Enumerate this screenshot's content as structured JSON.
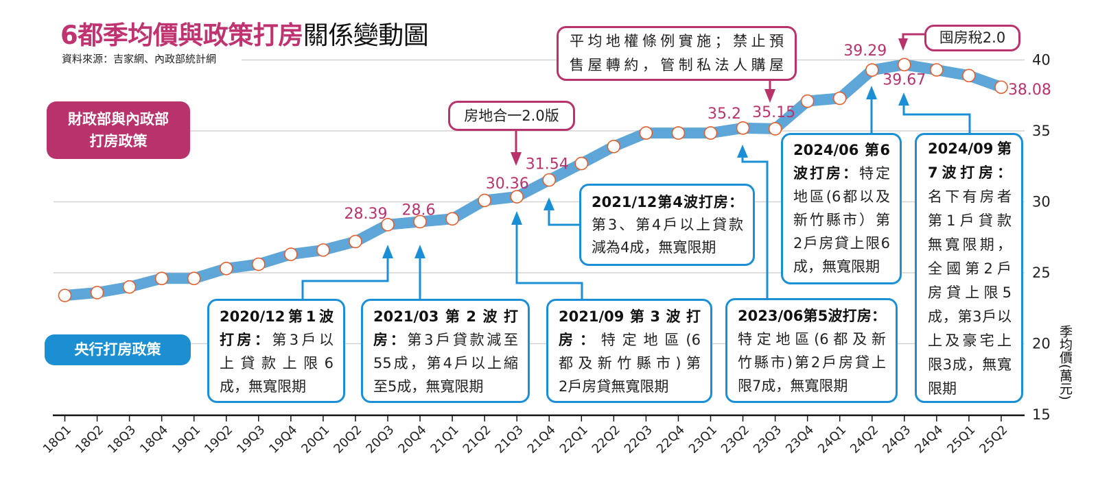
{
  "title": {
    "highlight": "6都季均價與政策打房",
    "rest": "關係變動圖"
  },
  "subtitle": "資料來源：吉家網、內政部統計網",
  "legend": {
    "finance_lines": [
      "財政部與內政部",
      "打房政策"
    ],
    "cbc_label": "央行打房政策"
  },
  "colors": {
    "title_pink": "#bf3470",
    "finance_pink": "#b8336b",
    "cbc_blue": "#1b8fd2",
    "series_band": "#5ea6d7",
    "point_stroke": "#e3602f"
  },
  "chart_data": {
    "type": "line",
    "title": "6都季均價與政策打房關係變動圖",
    "xlabel": "",
    "ylabel": "季均價(萬元)",
    "categories": [
      "18Q1",
      "18Q2",
      "18Q3",
      "18Q4",
      "19Q1",
      "19Q2",
      "19Q3",
      "19Q4",
      "20Q1",
      "20Q2",
      "20Q3",
      "20Q4",
      "21Q1",
      "21Q2",
      "21Q3",
      "21Q4",
      "22Q1",
      "22Q2",
      "22Q3",
      "22Q4",
      "23Q1",
      "23Q2",
      "23Q3",
      "23Q4",
      "24Q1",
      "24Q2",
      "24Q3",
      "24Q4",
      "25Q1",
      "25Q2"
    ],
    "values": [
      23.4,
      23.6,
      24.0,
      24.6,
      24.6,
      25.3,
      25.6,
      26.3,
      26.6,
      27.2,
      28.39,
      28.6,
      28.8,
      30.1,
      30.36,
      31.54,
      32.7,
      33.9,
      34.85,
      34.85,
      34.85,
      35.2,
      35.15,
      37.1,
      37.3,
      39.29,
      39.67,
      39.3,
      38.9,
      38.08
    ],
    "point_labels": [
      null,
      null,
      null,
      null,
      null,
      null,
      null,
      null,
      null,
      null,
      "28.39",
      "28.6",
      null,
      null,
      "30.36",
      "31.54",
      null,
      null,
      null,
      null,
      null,
      "35.2",
      "35.15",
      null,
      null,
      "39.29",
      "39.67",
      null,
      null,
      "38.08"
    ],
    "ylim": [
      15,
      40
    ],
    "yticks": [
      15,
      20,
      25,
      30,
      35,
      40
    ],
    "y_axis_side": "right",
    "grid": true,
    "legend": "none"
  },
  "annotations": {
    "finance": [
      {
        "lines": [
          "房地合一2.0版"
        ]
      },
      {
        "lines": [
          "平均地權條例實施；禁止預",
          "售屋轉約，管制私法人購屋"
        ]
      },
      {
        "lines": [
          "囤房稅2.0"
        ]
      }
    ],
    "cbc": [
      {
        "lines": [
          {
            "bold": "2020/12第1波"
          },
          {
            "bold": "打房：",
            "text": "第3戶以"
          },
          {
            "text": "上貸款上限6"
          },
          {
            "text": "成，無寬限期"
          }
        ]
      },
      {
        "lines": [
          {
            "bold": "2021/03第2波打"
          },
          {
            "bold": "房：",
            "text": "第3戶貸款減至"
          },
          {
            "text": "55成，第4戶以上縮"
          },
          {
            "text": "至5成，無寬限期"
          }
        ]
      },
      {
        "lines": [
          {
            "bold": "2021/09第3波打"
          },
          {
            "bold": "房：",
            "text": "特定地區(6"
          },
          {
            "text": "都及新竹縣市)第"
          },
          {
            "text": "2戶房貸無寬限期"
          }
        ]
      },
      {
        "lines": [
          {
            "bold": "2021/12第4波打房："
          },
          {
            "text": "第3、第4戶以上貸款"
          },
          {
            "text": "減為4成，無寬限期"
          }
        ]
      },
      {
        "lines": [
          {
            "bold": "2023/06第5波打房："
          },
          {
            "text": "特定地區(6都及新"
          },
          {
            "text": "竹縣市)第2戶房貸上"
          },
          {
            "text": "限7成，無寬限期"
          }
        ]
      },
      {
        "lines": [
          {
            "bold": "2024/06 第6"
          },
          {
            "bold": "波打房：",
            "text": "特定"
          },
          {
            "text": "地區(6都以及"
          },
          {
            "text": "新竹縣市）第"
          },
          {
            "text": "2戶房貸上限6"
          },
          {
            "text": "成，無寬限期"
          }
        ]
      },
      {
        "lines": [
          {
            "bold": "2024/09第"
          },
          {
            "bold": "7波打房："
          },
          {
            "text": "名下有房者"
          },
          {
            "text": "第1戶貸款"
          },
          {
            "text": "無寬限期，"
          },
          {
            "text": "全國第2戶"
          },
          {
            "text": "房貸上限5"
          },
          {
            "text": "成，第3戶以"
          },
          {
            "text": "上及豪宅上"
          },
          {
            "text": "限3成，無寬"
          },
          {
            "text": "限期"
          }
        ]
      }
    ]
  }
}
